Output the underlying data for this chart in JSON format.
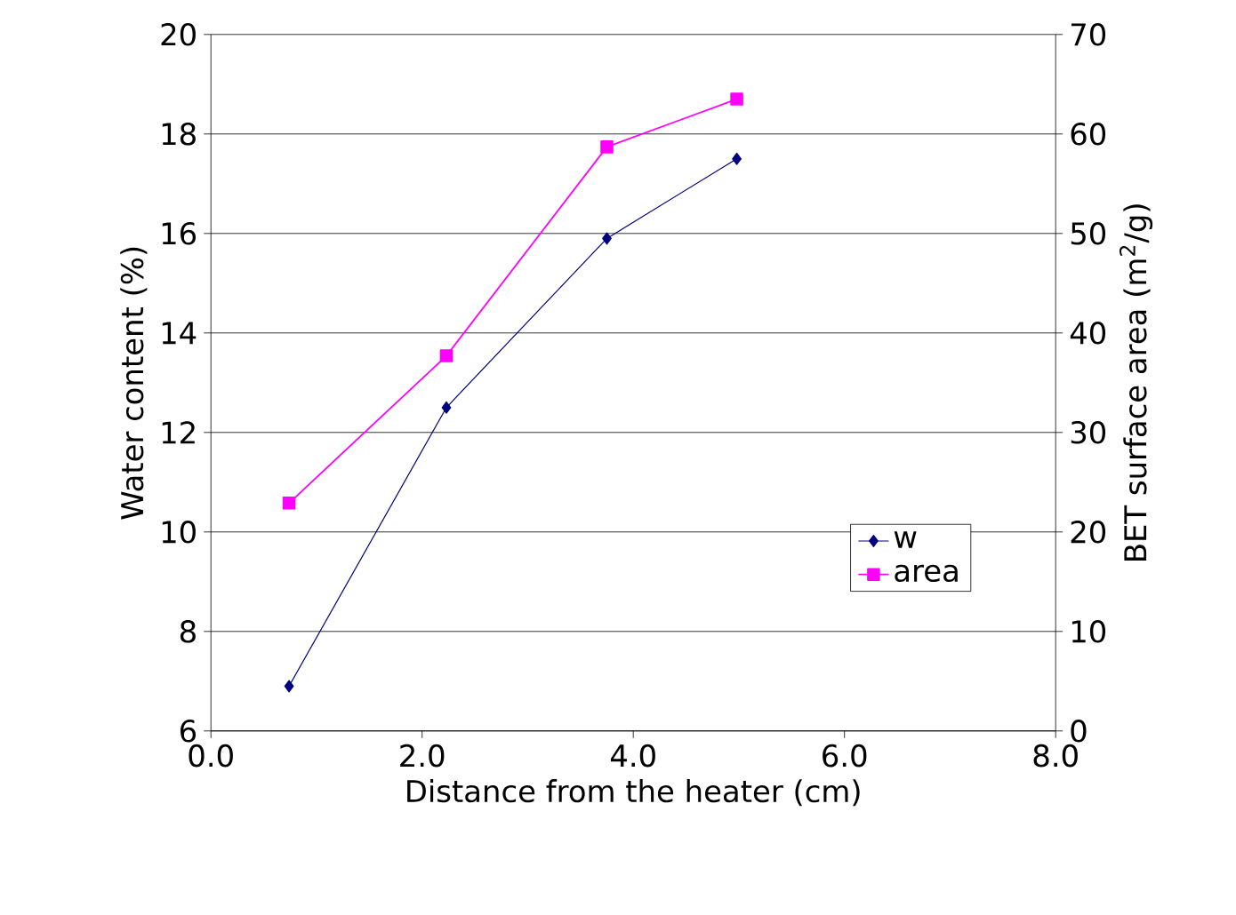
{
  "chart_data": {
    "type": "line",
    "xlabel": "Distance from the heater (cm)",
    "ylabel": "Water content (%)",
    "y2label": "BET surface area (m$^{2}$/g)",
    "xlim": [
      0,
      8
    ],
    "xticks": [
      {
        "value": 0,
        "label": "0.0"
      },
      {
        "value": 2,
        "label": "2.0"
      },
      {
        "value": 4,
        "label": "4.0"
      },
      {
        "value": 6,
        "label": "6.0"
      },
      {
        "value": 8,
        "label": "8.0"
      }
    ],
    "ylim": [
      6,
      20
    ],
    "yticks": [
      6,
      8,
      10,
      12,
      14,
      16,
      18,
      20
    ],
    "y2lim": [
      0,
      70
    ],
    "y2ticks": [
      0,
      10,
      20,
      30,
      40,
      50,
      60,
      70
    ],
    "grid": "y",
    "legend": "bottom right",
    "series": [
      {
        "name": "w",
        "color": "#000080",
        "marker": "diamond",
        "x": [
          0.74,
          2.23,
          3.75,
          4.98
        ],
        "values": [
          6.9,
          12.5,
          15.9,
          17.5
        ]
      },
      {
        "name": "area",
        "color": "#ff00ff",
        "marker": "square",
        "axis": "y2",
        "x": [
          0.74,
          2.23,
          3.75,
          4.98
        ],
        "values": [
          22.9,
          37.7,
          58.7,
          63.5
        ]
      }
    ]
  }
}
